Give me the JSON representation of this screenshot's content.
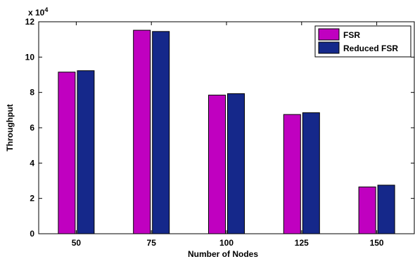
{
  "chart_data": {
    "type": "bar",
    "categories": [
      "50",
      "75",
      "100",
      "125",
      "150"
    ],
    "series": [
      {
        "name": "FSR",
        "values": [
          91500,
          115200,
          78500,
          67500,
          26500
        ],
        "color": "#c000c0"
      },
      {
        "name": "Reduced FSR",
        "values": [
          92300,
          114500,
          79300,
          68500,
          27500
        ],
        "color": "#15288a"
      }
    ],
    "xlabel": "Number of Nodes",
    "ylabel": "Throughput",
    "ylim": [
      0,
      120000
    ],
    "yticks": [
      0,
      2,
      4,
      6,
      8,
      10,
      12
    ],
    "y_exponent_label": "x 10",
    "y_exponent": "4",
    "legend_position": "top-right",
    "grid": false
  }
}
